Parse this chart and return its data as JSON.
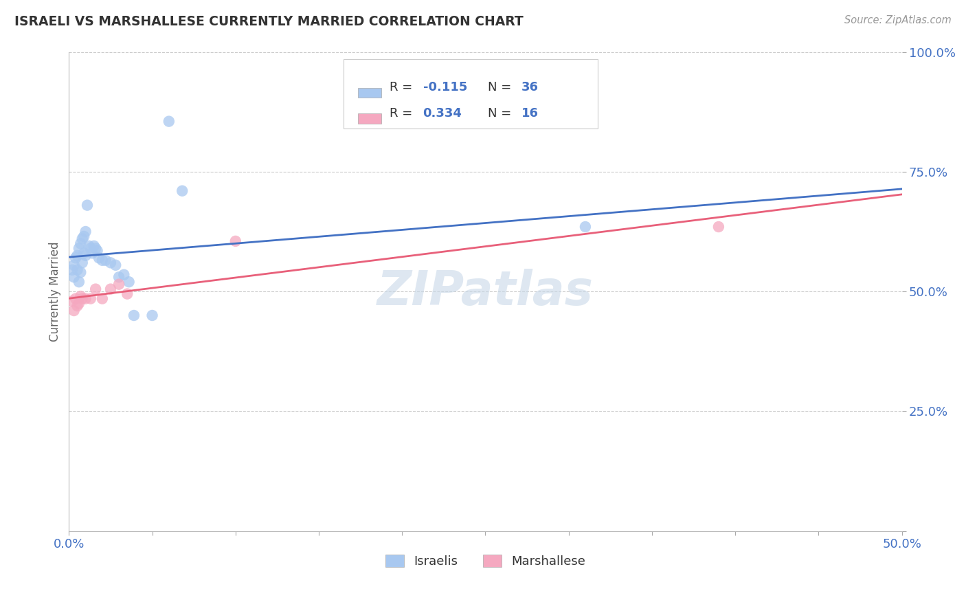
{
  "title": "ISRAELI VS MARSHALLESE CURRENTLY MARRIED CORRELATION CHART",
  "source_text": "Source: ZipAtlas.com",
  "ylabel": "Currently Married",
  "xlim": [
    0.0,
    0.5
  ],
  "ylim": [
    0.0,
    1.0
  ],
  "xticks": [
    0.0,
    0.05,
    0.1,
    0.15,
    0.2,
    0.25,
    0.3,
    0.35,
    0.4,
    0.45,
    0.5
  ],
  "yticks": [
    0.0,
    0.25,
    0.5,
    0.75,
    1.0
  ],
  "xtick_labels": [
    "0.0%",
    "",
    "",
    "",
    "",
    "",
    "",
    "",
    "",
    "",
    "50.0%"
  ],
  "ytick_labels": [
    "",
    "25.0%",
    "50.0%",
    "75.0%",
    "100.0%"
  ],
  "israeli_color": "#A8C8F0",
  "marshallese_color": "#F5A8C0",
  "trend_israeli_color": "#4472C4",
  "trend_marshallese_color": "#E8607A",
  "israeli_x": [
    0.002,
    0.003,
    0.003,
    0.004,
    0.004,
    0.005,
    0.005,
    0.006,
    0.006,
    0.007,
    0.007,
    0.008,
    0.008,
    0.009,
    0.009,
    0.01,
    0.01,
    0.011,
    0.012,
    0.013,
    0.014,
    0.015,
    0.016,
    0.018,
    0.02,
    0.022,
    0.024,
    0.026,
    0.028,
    0.03,
    0.032,
    0.035,
    0.038,
    0.05,
    0.06,
    0.31
  ],
  "israeli_y": [
    0.54,
    0.55,
    0.53,
    0.56,
    0.52,
    0.57,
    0.54,
    0.58,
    0.51,
    0.59,
    0.53,
    0.6,
    0.55,
    0.61,
    0.57,
    0.62,
    0.57,
    0.67,
    0.59,
    0.58,
    0.57,
    0.59,
    0.58,
    0.56,
    0.56,
    0.56,
    0.55,
    0.59,
    0.54,
    0.52,
    0.53,
    0.51,
    0.44,
    0.44,
    0.85,
    0.63
  ],
  "marshallese_x": [
    0.002,
    0.003,
    0.004,
    0.005,
    0.006,
    0.007,
    0.008,
    0.01,
    0.013,
    0.016,
    0.02,
    0.025,
    0.03,
    0.035,
    0.1,
    0.39
  ],
  "marshallese_y": [
    0.48,
    0.46,
    0.48,
    0.47,
    0.47,
    0.49,
    0.48,
    0.48,
    0.48,
    0.5,
    0.48,
    0.5,
    0.51,
    0.49,
    0.6,
    0.63
  ],
  "watermark": "ZIPatlas",
  "watermark_color": "#C8D8E8",
  "background_color": "#FFFFFF",
  "grid_color": "#CCCCCC"
}
